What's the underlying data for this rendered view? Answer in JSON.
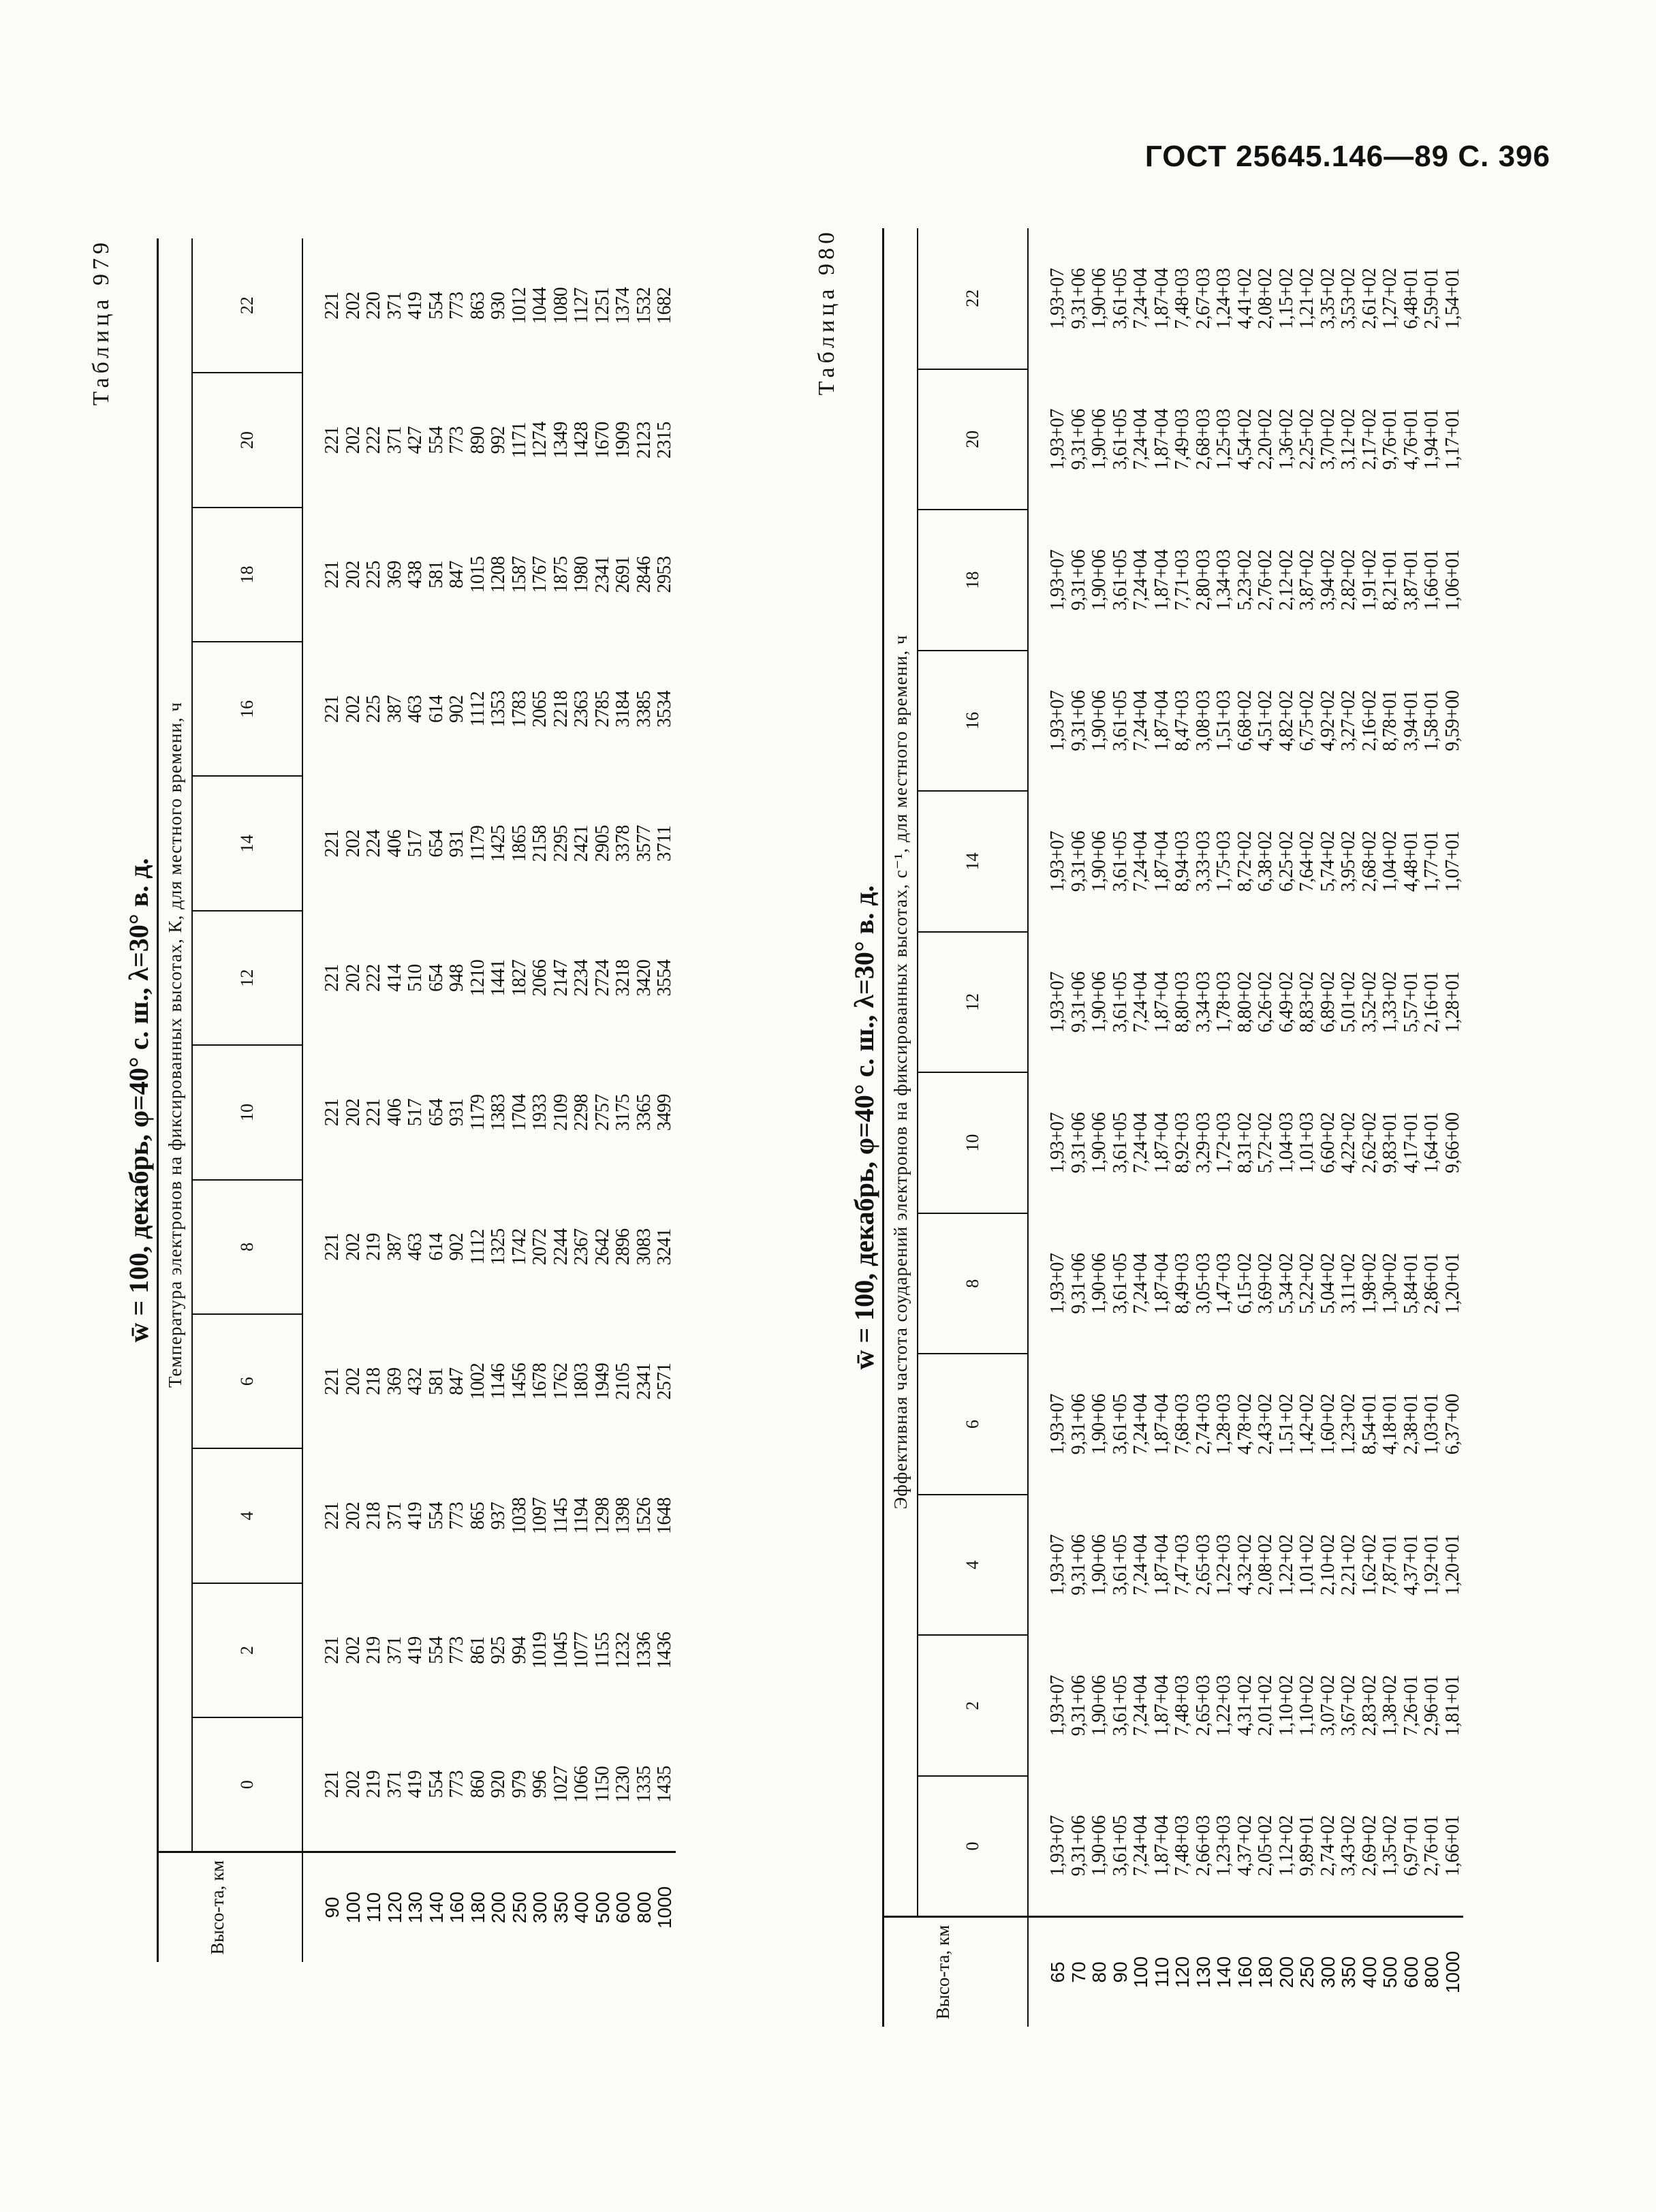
{
  "page_header": "ГОСТ 25645.146—89 С. 396",
  "tables": [
    {
      "caption": "Таблица 979",
      "title": "w̄ = 100, декабрь, φ=40° с. ш., λ=30° в. д.",
      "description": "Температура электронов на фиксированных высотах, К, для местного времени, ч",
      "height_header": "Высо-та, км",
      "hours": [
        "0",
        "2",
        "4",
        "6",
        "8",
        "10",
        "12",
        "14",
        "16",
        "18",
        "20",
        "22"
      ],
      "heights": [
        "90",
        "100",
        "110",
        "120",
        "130",
        "140",
        "160",
        "180",
        "200",
        "250",
        "300",
        "350",
        "400",
        "500",
        "600",
        "800",
        "1000"
      ],
      "values": [
        [
          "221",
          "202",
          "219",
          "371",
          "419",
          "554",
          "773",
          "860",
          "920",
          "979",
          "996",
          "1027",
          "1066",
          "1150",
          "1230",
          "1335",
          "1435"
        ],
        [
          "221",
          "202",
          "219",
          "371",
          "419",
          "554",
          "773",
          "861",
          "925",
          "994",
          "1019",
          "1045",
          "1077",
          "1155",
          "1232",
          "1336",
          "1436"
        ],
        [
          "221",
          "202",
          "218",
          "371",
          "419",
          "554",
          "773",
          "865",
          "937",
          "1038",
          "1097",
          "1145",
          "1194",
          "1298",
          "1398",
          "1526",
          "1648"
        ],
        [
          "221",
          "202",
          "218",
          "369",
          "432",
          "581",
          "847",
          "1002",
          "1146",
          "1456",
          "1678",
          "1762",
          "1803",
          "1949",
          "2105",
          "2341",
          "2571"
        ],
        [
          "221",
          "202",
          "219",
          "387",
          "463",
          "614",
          "902",
          "1112",
          "1325",
          "1742",
          "2072",
          "2244",
          "2367",
          "2642",
          "2896",
          "3083",
          "3241"
        ],
        [
          "221",
          "202",
          "221",
          "406",
          "517",
          "654",
          "931",
          "1179",
          "1383",
          "1704",
          "1933",
          "2109",
          "2298",
          "2757",
          "3175",
          "3365",
          "3499"
        ],
        [
          "221",
          "202",
          "222",
          "414",
          "510",
          "654",
          "948",
          "1210",
          "1441",
          "1827",
          "2066",
          "2147",
          "2234",
          "2724",
          "3218",
          "3420",
          "3554"
        ],
        [
          "221",
          "202",
          "224",
          "406",
          "517",
          "654",
          "931",
          "1179",
          "1425",
          "1865",
          "2158",
          "2295",
          "2421",
          "2905",
          "3378",
          "3577",
          "3711"
        ],
        [
          "221",
          "202",
          "225",
          "387",
          "463",
          "614",
          "902",
          "1112",
          "1353",
          "1783",
          "2065",
          "2218",
          "2363",
          "2785",
          "3184",
          "3385",
          "3534"
        ],
        [
          "221",
          "202",
          "225",
          "369",
          "438",
          "581",
          "847",
          "1015",
          "1208",
          "1587",
          "1767",
          "1875",
          "1980",
          "2341",
          "2691",
          "2846",
          "2953"
        ],
        [
          "221",
          "202",
          "222",
          "371",
          "427",
          "554",
          "773",
          "890",
          "992",
          "1171",
          "1274",
          "1349",
          "1428",
          "1670",
          "1909",
          "2123",
          "2315"
        ],
        [
          "221",
          "202",
          "220",
          "371",
          "419",
          "554",
          "773",
          "863",
          "930",
          "1012",
          "1044",
          "1080",
          "1127",
          "1251",
          "1374",
          "1532",
          "1682"
        ]
      ]
    },
    {
      "caption": "Таблица 980",
      "title": "w̄ = 100, декабрь, φ=40° с. ш., λ=30° в. д.",
      "description": "Эффективная частота соударений электронов на фиксированных высотах, с⁻¹, для местного времени, ч",
      "height_header": "Высо-та, км",
      "hours": [
        "0",
        "2",
        "4",
        "6",
        "8",
        "10",
        "12",
        "14",
        "16",
        "18",
        "20",
        "22"
      ],
      "heights": [
        "65",
        "70",
        "80",
        "90",
        "100",
        "110",
        "120",
        "130",
        "140",
        "160",
        "180",
        "200",
        "250",
        "300",
        "350",
        "400",
        "500",
        "600",
        "800",
        "1000"
      ],
      "values": [
        [
          "1,93+07",
          "9,31+06",
          "1,90+06",
          "3,61+05",
          "7,24+04",
          "1,87+04",
          "7,48+03",
          "2,66+03",
          "1,23+03",
          "4,37+02",
          "2,05+02",
          "1,12+02",
          "9,89+01",
          "2,74+02",
          "3,43+02",
          "2,69+02",
          "1,35+02",
          "6,97+01",
          "2,76+01",
          "1,66+01"
        ],
        [
          "1,93+07",
          "9,31+06",
          "1,90+06",
          "3,61+05",
          "7,24+04",
          "1,87+04",
          "7,48+03",
          "2,65+03",
          "1,22+03",
          "4,31+02",
          "2,01+02",
          "1,10+02",
          "1,10+02",
          "3,07+02",
          "3,67+02",
          "2,83+02",
          "1,38+02",
          "7,26+01",
          "2,96+01",
          "1,81+01"
        ],
        [
          "1,93+07",
          "9,31+06",
          "1,90+06",
          "3,61+05",
          "7,24+04",
          "1,87+04",
          "7,47+03",
          "2,65+03",
          "1,22+03",
          "4,32+02",
          "2,08+02",
          "1,22+02",
          "1,01+02",
          "2,10+02",
          "2,21+02",
          "1,62+02",
          "7,87+01",
          "4,37+01",
          "1,92+01",
          "1,20+01"
        ],
        [
          "1,93+07",
          "9,31+06",
          "1,90+06",
          "3,61+05",
          "7,24+04",
          "1,87+04",
          "7,68+03",
          "2,74+03",
          "1,28+03",
          "4,78+02",
          "2,43+02",
          "1,51+02",
          "1,42+02",
          "1,60+02",
          "1,23+02",
          "8,54+01",
          "4,18+01",
          "2,38+01",
          "1,03+01",
          "6,37+00"
        ],
        [
          "1,93+07",
          "9,31+06",
          "1,90+06",
          "3,61+05",
          "7,24+04",
          "1,87+04",
          "8,49+03",
          "3,05+03",
          "1,47+03",
          "6,15+02",
          "3,69+02",
          "5,34+02",
          "5,22+02",
          "5,04+02",
          "3,11+02",
          "1,98+02",
          "1,30+02",
          "5,84+01",
          "2,86+01",
          "1,20+01"
        ],
        [
          "1,93+07",
          "9,31+06",
          "1,90+06",
          "3,61+05",
          "7,24+04",
          "1,87+04",
          "8,92+03",
          "3,29+03",
          "1,72+03",
          "8,31+02",
          "5,72+02",
          "1,04+03",
          "1,01+03",
          "6,60+02",
          "4,22+02",
          "2,62+02",
          "9,83+01",
          "4,17+01",
          "1,64+01",
          "9,66+00"
        ],
        [
          "1,93+07",
          "9,31+06",
          "1,90+06",
          "3,61+05",
          "7,24+04",
          "1,87+04",
          "8,80+03",
          "3,34+03",
          "1,78+03",
          "8,80+02",
          "6,26+02",
          "6,49+02",
          "8,83+02",
          "6,89+02",
          "5,01+02",
          "3,52+02",
          "1,33+02",
          "5,57+01",
          "2,16+01",
          "1,28+01"
        ],
        [
          "1,93+07",
          "9,31+06",
          "1,90+06",
          "3,61+05",
          "7,24+04",
          "1,87+04",
          "8,94+03",
          "3,33+03",
          "1,75+03",
          "8,72+02",
          "6,38+02",
          "6,25+02",
          "7,64+02",
          "5,74+02",
          "3,95+02",
          "2,68+02",
          "1,04+02",
          "4,48+01",
          "1,77+01",
          "1,07+01"
        ],
        [
          "1,93+07",
          "9,31+06",
          "1,90+06",
          "3,61+05",
          "7,24+04",
          "1,87+04",
          "8,47+03",
          "3,08+03",
          "1,51+03",
          "6,68+02",
          "4,51+02",
          "4,82+02",
          "6,75+02",
          "4,92+02",
          "3,27+02",
          "2,16+02",
          "8,78+01",
          "3,94+01",
          "1,58+01",
          "9,59+00"
        ],
        [
          "1,93+07",
          "9,31+06",
          "1,90+06",
          "3,61+05",
          "7,24+04",
          "1,87+04",
          "7,71+03",
          "2,80+03",
          "1,34+03",
          "5,23+02",
          "2,76+02",
          "2,12+02",
          "3,87+02",
          "3,94+02",
          "2,82+02",
          "1,91+02",
          "8,21+01",
          "3,87+01",
          "1,66+01",
          "1,06+01"
        ],
        [
          "1,93+07",
          "9,31+06",
          "1,90+06",
          "3,61+05",
          "7,24+04",
          "1,87+04",
          "7,49+03",
          "2,68+03",
          "1,25+03",
          "4,54+02",
          "2,20+02",
          "1,36+02",
          "2,25+02",
          "3,70+02",
          "3,12+02",
          "2,17+02",
          "9,76+01",
          "4,76+01",
          "1,94+01",
          "1,17+01"
        ],
        [
          "1,93+07",
          "9,31+06",
          "1,90+06",
          "3,61+05",
          "7,24+04",
          "1,87+04",
          "7,48+03",
          "2,67+03",
          "1,24+03",
          "4,41+02",
          "2,08+02",
          "1,15+02",
          "1,21+02",
          "3,35+02",
          "3,53+02",
          "2,61+02",
          "1,27+02",
          "6,48+01",
          "2,59+01",
          "1,54+01"
        ]
      ]
    }
  ]
}
